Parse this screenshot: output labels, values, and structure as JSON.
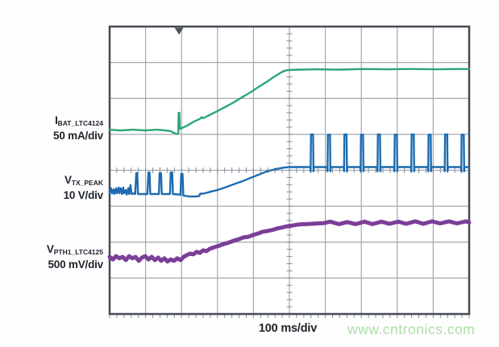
{
  "watermark": {
    "text": "www.cntronics.com",
    "color": "#addca7"
  },
  "chart_data": {
    "type": "line",
    "title": "",
    "x_axis": {
      "label": "100 ms/div",
      "divisions": 10,
      "minor_per_div": 5
    },
    "y_axis": {
      "label": "",
      "divisions": 8,
      "minor_per_div": 5
    },
    "legend_position": "left",
    "grid": "on",
    "trigger": {
      "x_div": 1.93
    },
    "style": {
      "background": "#ffffff",
      "grid": "#a2a7af",
      "tick": "#878d97",
      "border": "#454b55",
      "trigger": "#4d525c"
    },
    "series": [
      {
        "id": "ch1",
        "label_main": "I",
        "label_sub": "BAT_LTC4124",
        "scale": "50 mA/div",
        "color": "#2ca678",
        "stroke_px": 2.4,
        "points_div": [
          [
            0,
            2.87
          ],
          [
            0.31,
            2.89
          ],
          [
            0.65,
            2.87
          ],
          [
            0.99,
            2.89
          ],
          [
            1.32,
            2.87
          ],
          [
            1.55,
            2.89
          ],
          [
            1.7,
            2.91
          ],
          [
            1.79,
            2.96
          ],
          [
            1.86,
            2.99
          ],
          [
            1.91,
            2.98
          ],
          [
            1.92,
            2.4
          ],
          [
            1.94,
            2.4
          ],
          [
            1.95,
            2.85
          ],
          [
            2.02,
            2.82
          ],
          [
            2.15,
            2.76
          ],
          [
            2.33,
            2.65
          ],
          [
            2.51,
            2.57
          ],
          [
            2.56,
            2.52
          ],
          [
            2.6,
            2.55
          ],
          [
            2.78,
            2.46
          ],
          [
            3.0,
            2.35
          ],
          [
            3.23,
            2.23
          ],
          [
            3.45,
            2.11
          ],
          [
            3.68,
            1.97
          ],
          [
            3.9,
            1.84
          ],
          [
            4.13,
            1.69
          ],
          [
            4.35,
            1.55
          ],
          [
            4.57,
            1.4
          ],
          [
            4.73,
            1.3
          ],
          [
            4.84,
            1.24
          ],
          [
            4.96,
            1.21
          ],
          [
            5.25,
            1.2
          ],
          [
            5.7,
            1.19
          ],
          [
            6.37,
            1.2
          ],
          [
            7.04,
            1.18
          ],
          [
            7.71,
            1.19
          ],
          [
            8.39,
            1.18
          ],
          [
            9.06,
            1.19
          ],
          [
            9.73,
            1.18
          ],
          [
            10,
            1.18
          ]
        ]
      },
      {
        "id": "ch2",
        "label_main": "V",
        "label_sub": "TX_PEAK",
        "scale": "10 V/div",
        "color": "#1c6bb0",
        "stroke_px": 2.4,
        "points_div": [
          [
            0,
            4.64
          ],
          [
            0.04,
            4.5
          ],
          [
            0.07,
            4.64
          ],
          [
            0.11,
            4.53
          ],
          [
            0.13,
            4.66
          ],
          [
            0.18,
            4.5
          ],
          [
            0.2,
            4.64
          ],
          [
            0.25,
            4.48
          ],
          [
            0.27,
            4.64
          ],
          [
            0.31,
            4.5
          ],
          [
            0.34,
            4.66
          ],
          [
            0.38,
            4.48
          ],
          [
            0.4,
            4.64
          ],
          [
            0.45,
            4.55
          ],
          [
            0.47,
            4.68
          ],
          [
            0.52,
            4.5
          ],
          [
            0.54,
            4.66
          ],
          [
            0.58,
            4.41
          ],
          [
            0.61,
            4.66
          ],
          [
            0.67,
            4.64
          ],
          [
            0.71,
            4.66
          ],
          [
            0.74,
            4.08
          ],
          [
            0.77,
            4.08
          ],
          [
            0.79,
            4.66
          ],
          [
            1.05,
            4.66
          ],
          [
            1.08,
            4.06
          ],
          [
            1.11,
            4.06
          ],
          [
            1.13,
            4.66
          ],
          [
            1.37,
            4.66
          ],
          [
            1.39,
            4.08
          ],
          [
            1.43,
            4.08
          ],
          [
            1.45,
            4.66
          ],
          [
            1.68,
            4.66
          ],
          [
            1.7,
            4.06
          ],
          [
            1.74,
            4.06
          ],
          [
            1.76,
            4.66
          ],
          [
            1.97,
            4.68
          ],
          [
            1.99,
            4.1
          ],
          [
            2.03,
            4.1
          ],
          [
            2.05,
            4.7
          ],
          [
            2.09,
            4.71
          ],
          [
            2.22,
            4.73
          ],
          [
            2.38,
            4.73
          ],
          [
            2.49,
            4.72
          ],
          [
            2.52,
            4.65
          ],
          [
            2.6,
            4.65
          ],
          [
            2.69,
            4.63
          ],
          [
            2.83,
            4.59
          ],
          [
            3.0,
            4.55
          ],
          [
            3.23,
            4.47
          ],
          [
            3.45,
            4.39
          ],
          [
            3.68,
            4.31
          ],
          [
            3.9,
            4.22
          ],
          [
            4.13,
            4.13
          ],
          [
            4.35,
            4.04
          ],
          [
            4.57,
            3.98
          ],
          [
            4.8,
            3.93
          ],
          [
            4.98,
            3.91
          ],
          [
            5.47,
            3.91
          ],
          [
            5.58,
            3.91
          ],
          [
            5.59,
            4.03
          ],
          [
            5.6,
            3.0
          ],
          [
            5.66,
            3.0
          ],
          [
            5.67,
            4.03
          ],
          [
            5.68,
            3.91
          ],
          [
            6.05,
            3.91
          ],
          [
            6.06,
            4.03
          ],
          [
            6.07,
            3.01
          ],
          [
            6.13,
            3.01
          ],
          [
            6.14,
            4.03
          ],
          [
            6.15,
            3.91
          ],
          [
            6.51,
            3.91
          ],
          [
            6.52,
            4.03
          ],
          [
            6.53,
            3.0
          ],
          [
            6.59,
            3.0
          ],
          [
            6.6,
            4.03
          ],
          [
            6.61,
            3.91
          ],
          [
            6.97,
            3.91
          ],
          [
            6.98,
            4.03
          ],
          [
            6.99,
            3.01
          ],
          [
            7.05,
            3.01
          ],
          [
            7.06,
            4.03
          ],
          [
            7.07,
            3.91
          ],
          [
            7.44,
            3.91
          ],
          [
            7.45,
            4.03
          ],
          [
            7.46,
            3.0
          ],
          [
            7.52,
            3.0
          ],
          [
            7.53,
            4.03
          ],
          [
            7.54,
            3.91
          ],
          [
            7.91,
            3.91
          ],
          [
            7.92,
            4.03
          ],
          [
            7.93,
            3.01
          ],
          [
            7.99,
            3.01
          ],
          [
            8.0,
            4.03
          ],
          [
            8.01,
            3.91
          ],
          [
            8.38,
            3.91
          ],
          [
            8.39,
            4.03
          ],
          [
            8.4,
            3.0
          ],
          [
            8.46,
            3.0
          ],
          [
            8.47,
            4.03
          ],
          [
            8.48,
            3.91
          ],
          [
            8.85,
            3.91
          ],
          [
            8.86,
            4.03
          ],
          [
            8.87,
            3.01
          ],
          [
            8.93,
            3.01
          ],
          [
            8.94,
            4.03
          ],
          [
            8.95,
            3.91
          ],
          [
            9.31,
            3.91
          ],
          [
            9.32,
            4.03
          ],
          [
            9.33,
            3.0
          ],
          [
            9.39,
            3.0
          ],
          [
            9.4,
            4.03
          ],
          [
            9.41,
            3.91
          ],
          [
            9.77,
            3.91
          ],
          [
            9.78,
            4.03
          ],
          [
            9.79,
            3.01
          ],
          [
            9.85,
            3.01
          ],
          [
            9.86,
            4.03
          ],
          [
            9.87,
            3.91
          ],
          [
            10,
            3.91
          ]
        ]
      },
      {
        "id": "ch3",
        "label_main": "V",
        "label_sub": "PTH1_LTC4125",
        "scale": "500 mV/div",
        "color": "#7b3f98",
        "stroke_px": 5,
        "points_div": [
          [
            0,
            6.41
          ],
          [
            0.09,
            6.48
          ],
          [
            0.18,
            6.39
          ],
          [
            0.27,
            6.45
          ],
          [
            0.36,
            6.41
          ],
          [
            0.45,
            6.5
          ],
          [
            0.54,
            6.39
          ],
          [
            0.63,
            6.45
          ],
          [
            0.72,
            6.41
          ],
          [
            0.81,
            6.52
          ],
          [
            0.9,
            6.43
          ],
          [
            0.99,
            6.39
          ],
          [
            1.08,
            6.48
          ],
          [
            1.17,
            6.41
          ],
          [
            1.26,
            6.5
          ],
          [
            1.35,
            6.43
          ],
          [
            1.43,
            6.52
          ],
          [
            1.52,
            6.45
          ],
          [
            1.61,
            6.54
          ],
          [
            1.7,
            6.48
          ],
          [
            1.79,
            6.52
          ],
          [
            1.88,
            6.45
          ],
          [
            1.97,
            6.5
          ],
          [
            2.06,
            6.41
          ],
          [
            2.15,
            6.36
          ],
          [
            2.24,
            6.32
          ],
          [
            2.33,
            6.34
          ],
          [
            2.42,
            6.27
          ],
          [
            2.51,
            6.3
          ],
          [
            2.6,
            6.23
          ],
          [
            2.69,
            6.25
          ],
          [
            2.78,
            6.19
          ],
          [
            2.91,
            6.14
          ],
          [
            3.05,
            6.1
          ],
          [
            3.18,
            6.05
          ],
          [
            3.32,
            6.01
          ],
          [
            3.45,
            5.96
          ],
          [
            3.59,
            5.92
          ],
          [
            3.72,
            5.87
          ],
          [
            3.86,
            5.85
          ],
          [
            3.99,
            5.8
          ],
          [
            4.13,
            5.76
          ],
          [
            4.26,
            5.71
          ],
          [
            4.39,
            5.69
          ],
          [
            4.53,
            5.66
          ],
          [
            4.66,
            5.62
          ],
          [
            4.8,
            5.59
          ],
          [
            4.93,
            5.56
          ],
          [
            5.07,
            5.54
          ],
          [
            5.25,
            5.51
          ],
          [
            5.43,
            5.5
          ],
          [
            5.61,
            5.49
          ],
          [
            5.78,
            5.48
          ],
          [
            5.96,
            5.47
          ],
          [
            6.14,
            5.43
          ],
          [
            6.37,
            5.5
          ],
          [
            6.61,
            5.44
          ],
          [
            6.84,
            5.5
          ],
          [
            7.09,
            5.43
          ],
          [
            7.31,
            5.5
          ],
          [
            7.56,
            5.43
          ],
          [
            7.78,
            5.49
          ],
          [
            8.03,
            5.43
          ],
          [
            8.25,
            5.49
          ],
          [
            8.5,
            5.42
          ],
          [
            8.72,
            5.49
          ],
          [
            8.97,
            5.42
          ],
          [
            9.19,
            5.48
          ],
          [
            9.44,
            5.42
          ],
          [
            9.66,
            5.48
          ],
          [
            9.91,
            5.42
          ],
          [
            10,
            5.45
          ]
        ]
      }
    ]
  }
}
